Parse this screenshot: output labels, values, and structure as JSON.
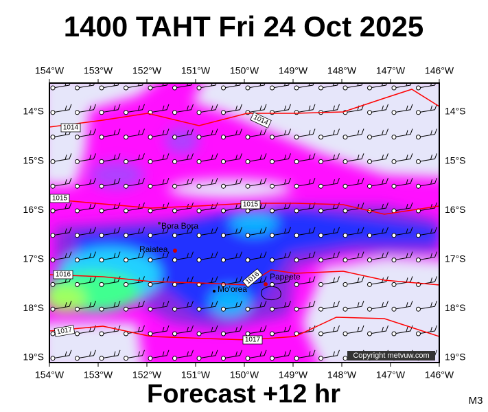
{
  "title": "1400 TAHT Fri 24 Oct 2025",
  "lon_labels": [
    "154°W",
    "153°W",
    "152°W",
    "151°W",
    "150°W",
    "149°W",
    "148°W",
    "147°W",
    "146°W"
  ],
  "lat_labels": [
    "14°S",
    "15°S",
    "16°S",
    "17°S",
    "18°S",
    "19°S"
  ],
  "isobar_labels": [
    "1014",
    "1014",
    "1015",
    "1015",
    "1016",
    "1016",
    "1017",
    "1017"
  ],
  "places": [
    "Bora Bora",
    "Raiatea",
    "Mo'orea",
    "Papeete"
  ],
  "copyright": "Copyright metvuw.com",
  "footer": "Forecast +12 hr",
  "code": "M3"
}
